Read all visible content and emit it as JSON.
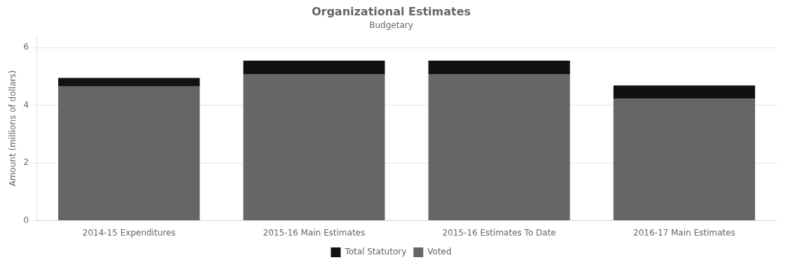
{
  "chart_data": {
    "type": "bar",
    "stacked": true,
    "title": "Organizational Estimates",
    "subtitle": "Budgetary",
    "categories": [
      "2014-15 Expenditures",
      "2015-16 Main Estimates",
      "2015-16 Estimates To Date",
      "2016-17 Main Estimates"
    ],
    "series": [
      {
        "name": "Total Statutory",
        "color": "#111111",
        "values": [
          0.3,
          0.47,
          0.47,
          0.47
        ]
      },
      {
        "name": "Voted",
        "color": "#666666",
        "values": [
          4.65,
          5.08,
          5.08,
          4.22
        ]
      }
    ],
    "ylim": [
      0,
      6.4
    ],
    "yticks": [
      0,
      2,
      4,
      6
    ],
    "ylabel": "Amount (millions of dollars)",
    "grid": true,
    "legend": "bottom"
  }
}
